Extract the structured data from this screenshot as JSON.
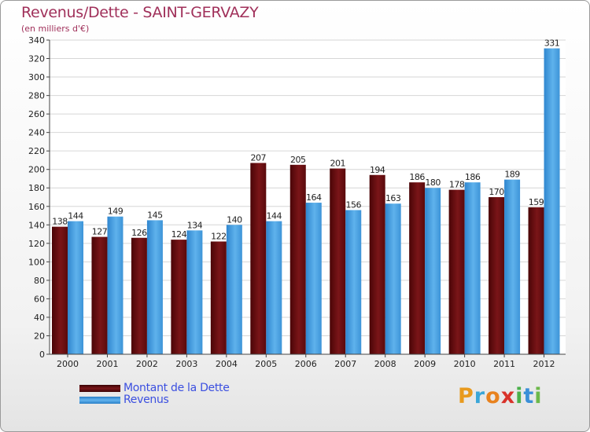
{
  "title": "Revenus/Dette - SAINT-GERVAZY",
  "subtitle": "(en milliers d'€)",
  "legend": [
    {
      "label": "Montant de la Dette",
      "color": "#6b0d10"
    },
    {
      "label": "Revenus",
      "color": "#3d9be0"
    }
  ],
  "brand": {
    "letters": [
      "P",
      "r",
      "o",
      "x",
      "i",
      "t",
      "i"
    ],
    "colors": [
      "#e89a1e",
      "#3aa6d8",
      "#e8821e",
      "#d8322a",
      "#4ab04a",
      "#3a8fd8",
      "#6cb84a"
    ]
  },
  "chart_data": {
    "type": "bar",
    "title": "Revenus/Dette - SAINT-GERVAZY",
    "ylabel": "(en milliers d'€)",
    "categories": [
      "2000",
      "2001",
      "2002",
      "2003",
      "2004",
      "2005",
      "2006",
      "2007",
      "2008",
      "2009",
      "2010",
      "2011",
      "2012"
    ],
    "series": [
      {
        "name": "Montant de la Dette",
        "color": "#6b0d10",
        "values": [
          138,
          127,
          126,
          124,
          122,
          207,
          205,
          201,
          194,
          186,
          178,
          170,
          159
        ]
      },
      {
        "name": "Revenus",
        "color": "#3d9be0",
        "values": [
          144,
          149,
          145,
          134,
          140,
          144,
          164,
          156,
          163,
          180,
          186,
          189,
          331
        ]
      }
    ],
    "ylim": [
      0,
      340
    ],
    "yticks": [
      0,
      20,
      40,
      60,
      80,
      100,
      120,
      140,
      160,
      180,
      200,
      220,
      240,
      260,
      280,
      300,
      320,
      340
    ],
    "grid": true
  }
}
